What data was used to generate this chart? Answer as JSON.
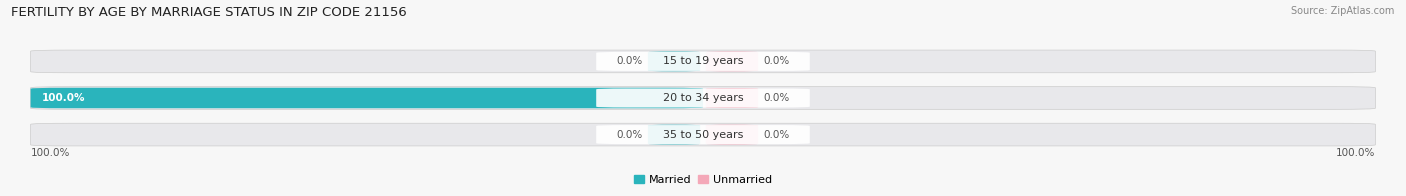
{
  "title": "FERTILITY BY AGE BY MARRIAGE STATUS IN ZIP CODE 21156",
  "source": "Source: ZipAtlas.com",
  "age_groups": [
    "15 to 19 years",
    "20 to 34 years",
    "35 to 50 years"
  ],
  "married_values": [
    0.0,
    100.0,
    0.0
  ],
  "unmarried_values": [
    0.0,
    0.0,
    0.0
  ],
  "married_color": "#2ab4bc",
  "unmarried_color": "#f4a8b8",
  "bar_bg_color": "#e8e8eb",
  "label_pill_color": "#ffffff",
  "x_left_label": "100.0%",
  "x_right_label": "100.0%",
  "legend_married": "Married",
  "legend_unmarried": "Unmarried",
  "background_color": "#f7f7f7",
  "title_fontsize": 9.5,
  "label_fontsize": 8,
  "pct_fontsize": 7.5,
  "source_fontsize": 7,
  "axis_label_fontsize": 7.5
}
